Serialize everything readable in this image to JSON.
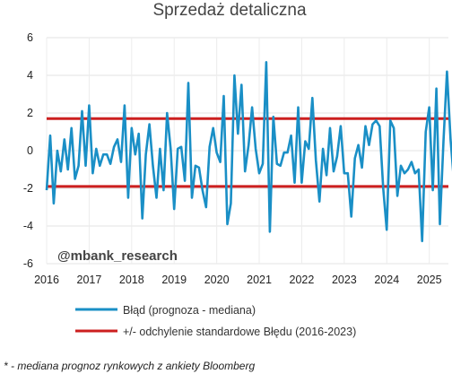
{
  "chart_data": {
    "type": "line",
    "title": "Sprzedaż detaliczna",
    "watermark": "@mbank_research",
    "footnote": "* - mediana prognoz rynkowych z ankiety Bloomberg",
    "xlabel": "",
    "ylabel": "",
    "xlim": [
      2016.0,
      2025.45
    ],
    "ylim": [
      -6,
      6
    ],
    "xticks": [
      "2016",
      "2017",
      "2018",
      "2019",
      "2020",
      "2021",
      "2022",
      "2023",
      "2024",
      "2025"
    ],
    "yticks": [
      "6",
      "4",
      "2",
      "0",
      "-2",
      "-4",
      "-6"
    ],
    "grid": true,
    "legend_position": "bottom",
    "series": [
      {
        "name": "Błąd (prognoza - mediana)",
        "color": "#1a8fc6",
        "x_start": 2016.0,
        "x_step": 0.08333,
        "values": [
          -2.1,
          0.8,
          -2.8,
          0.0,
          -1.1,
          0.6,
          -1.0,
          1.2,
          -1.5,
          -0.8,
          2.1,
          -0.8,
          2.4,
          -1.2,
          0.1,
          -0.8,
          -0.2,
          -0.2,
          -0.7,
          0.2,
          0.6,
          -0.6,
          2.4,
          -2.5,
          1.2,
          -0.2,
          0.9,
          -3.6,
          -0.2,
          1.4,
          -0.8,
          -2.5,
          0.1,
          -2.1,
          2.0,
          0.1,
          -3.1,
          0.1,
          0.2,
          -1.6,
          3.6,
          -2.5,
          -0.8,
          -0.9,
          -2.1,
          -3.0,
          0.2,
          1.2,
          -0.1,
          -0.6,
          2.9,
          -3.9,
          -2.8,
          4.0,
          0.9,
          3.5,
          -1.1,
          0.3,
          2.3,
          0.1,
          -1.2,
          -0.7,
          4.7,
          -4.3,
          1.8,
          -0.7,
          -0.8,
          -0.1,
          -0.1,
          0.8,
          -1.7,
          2.3,
          -1.7,
          0.5,
          0.1,
          2.8,
          -0.5,
          -2.7,
          0.1,
          -1.3,
          1.2,
          -1.1,
          -0.3,
          1.3,
          -1.2,
          -1.2,
          -3.5,
          -0.4,
          0.3,
          -0.9,
          1.3,
          0.3,
          1.4,
          1.6,
          1.3,
          -2.0,
          -4.2,
          1.6,
          1.2,
          -2.4,
          -0.8,
          -1.2,
          -1.0,
          -0.6,
          -1.2,
          -1.0,
          -4.8,
          1.0,
          2.3,
          -2.1,
          3.3,
          -3.9,
          0.5,
          4.2,
          0.6,
          -1.7
        ]
      }
    ],
    "reference_lines": {
      "name": "+/- odchylenie standardowe Błędu (2016-2023)",
      "color": "#cc1f1f",
      "values": [
        1.7,
        -1.9
      ]
    }
  }
}
